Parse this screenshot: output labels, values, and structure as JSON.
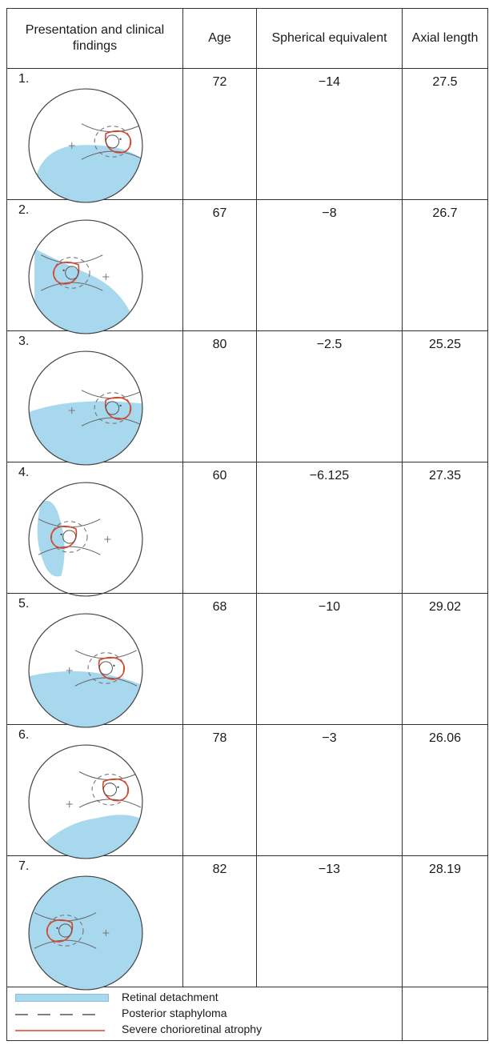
{
  "header": {
    "col1": "Presentation and clinical findings",
    "col2": "Age",
    "col3": "Spherical equivalent",
    "col4": "Axial length"
  },
  "cases": [
    {
      "label": "1.",
      "age": "72",
      "sph": "−14",
      "axial": "27.5"
    },
    {
      "label": "2.",
      "age": "67",
      "sph": "−8",
      "axial": "26.7"
    },
    {
      "label": "3.",
      "age": "80",
      "sph": "−2.5",
      "axial": "25.25"
    },
    {
      "label": "4.",
      "age": "60",
      "sph": "−6.125",
      "axial": "27.35"
    },
    {
      "label": "5.",
      "age": "68",
      "sph": "−10",
      "axial": "29.02"
    },
    {
      "label": "6.",
      "age": "78",
      "sph": "−3",
      "axial": "26.06"
    },
    {
      "label": "7.",
      "age": "82",
      "sph": "−13",
      "axial": "28.19"
    }
  ],
  "legend": {
    "rd": "Retinal detachment",
    "ps": "Posterior staphyloma",
    "sca": "Severe chorioretinal atrophy"
  },
  "colors": {
    "detachment": "#a8d8ee",
    "atrophy": "#d9452b",
    "outline": "#555555"
  }
}
